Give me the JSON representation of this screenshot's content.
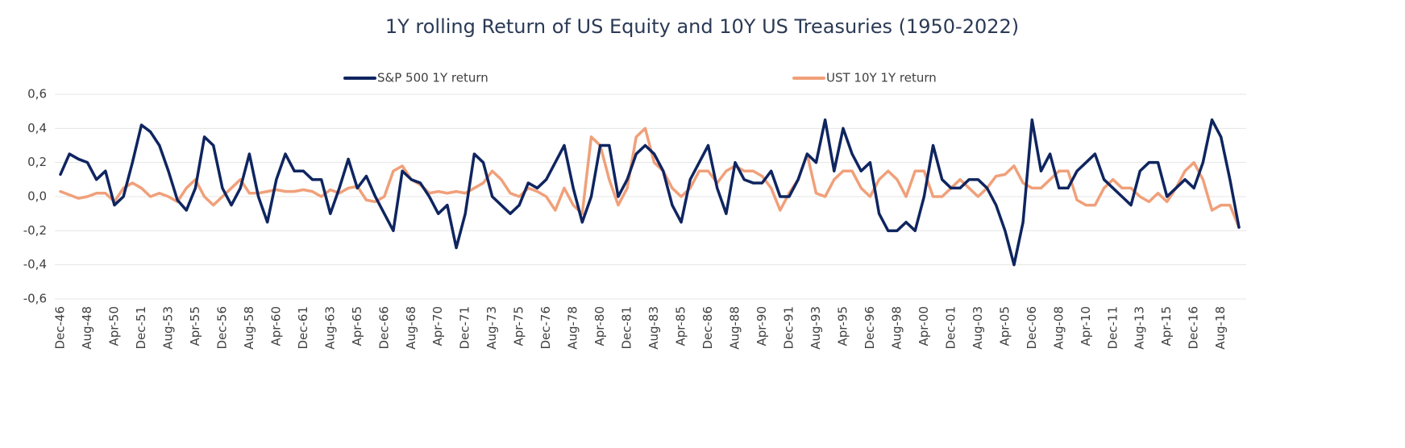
{
  "chart_data": {
    "type": "line",
    "title": "1Y rolling Return of US Equity and 10Y US Treasuries (1950-2022)",
    "legend": "top",
    "grid": true,
    "ylim": [
      -0.6,
      0.6
    ],
    "yticks": [
      {
        "value": 0.6,
        "label": "0,6"
      },
      {
        "value": 0.4,
        "label": "0,4"
      },
      {
        "value": 0.2,
        "label": "0,2"
      },
      {
        "value": 0,
        "label": "0,0"
      },
      {
        "value": -0.2,
        "label": "-0,2"
      },
      {
        "value": -0.4,
        "label": "-0,4"
      },
      {
        "value": -0.6,
        "label": "-0,6"
      }
    ],
    "categories": [
      "Dec-46",
      null,
      null,
      "Aug-48",
      null,
      null,
      "Apr-50",
      null,
      null,
      "Dec-51",
      null,
      null,
      "Aug-53",
      null,
      null,
      "Apr-55",
      null,
      null,
      "Dec-56",
      null,
      null,
      "Aug-58",
      null,
      null,
      "Apr-60",
      null,
      null,
      "Dec-61",
      null,
      null,
      "Aug-63",
      null,
      null,
      "Apr-65",
      null,
      null,
      "Dec-66",
      null,
      null,
      "Aug-68",
      null,
      null,
      "Apr-70",
      null,
      null,
      "Dec-71",
      null,
      null,
      "Aug-73",
      null,
      null,
      "Apr-75",
      null,
      null,
      "Dec-76",
      null,
      null,
      "Aug-78",
      null,
      null,
      "Apr-80",
      null,
      null,
      "Dec-81",
      null,
      null,
      "Aug-83",
      null,
      null,
      "Apr-85",
      null,
      null,
      "Dec-86",
      null,
      null,
      "Aug-88",
      null,
      null,
      "Apr-90",
      null,
      null,
      "Dec-91",
      null,
      null,
      "Aug-93",
      null,
      null,
      "Apr-95",
      null,
      null,
      "Dec-96",
      null,
      null,
      "Aug-98",
      null,
      null,
      "Apr-00",
      null,
      null,
      "Dec-01",
      null,
      null,
      "Aug-03",
      null,
      null,
      "Apr-05",
      null,
      null,
      "Dec-06",
      null,
      null,
      "Aug-08",
      null,
      null,
      "Apr-10",
      null,
      null,
      "Dec-11",
      null,
      null,
      "Aug-13",
      null,
      null,
      "Apr-15",
      null,
      null,
      "Dec-16",
      null,
      null,
      "Aug-18",
      null,
      null
    ],
    "series": [
      {
        "name": "S&P 500 1Y return",
        "color": "#0f2560",
        "values": [
          0.13,
          0.25,
          0.22,
          0.2,
          0.1,
          0.15,
          -0.05,
          0.0,
          0.2,
          0.42,
          0.38,
          0.3,
          0.15,
          -0.02,
          -0.08,
          0.05,
          0.35,
          0.3,
          0.05,
          -0.05,
          0.05,
          0.25,
          0.0,
          -0.15,
          0.1,
          0.25,
          0.15,
          0.15,
          0.1,
          0.1,
          -0.1,
          0.05,
          0.22,
          0.05,
          0.12,
          0.0,
          -0.1,
          -0.2,
          0.15,
          0.1,
          0.08,
          0.0,
          -0.1,
          -0.05,
          -0.3,
          -0.1,
          0.25,
          0.2,
          0.0,
          -0.05,
          -0.1,
          -0.05,
          0.08,
          0.05,
          0.1,
          0.2,
          0.3,
          0.05,
          -0.15,
          0.0,
          0.3,
          0.3,
          0.0,
          0.1,
          0.25,
          0.3,
          0.25,
          0.15,
          -0.05,
          -0.15,
          0.1,
          0.2,
          0.3,
          0.05,
          -0.1,
          0.2,
          0.1,
          0.08,
          0.08,
          0.15,
          0.0,
          0.0,
          0.1,
          0.25,
          0.2,
          0.45,
          0.15,
          0.4,
          0.25,
          0.15,
          0.2,
          -0.1,
          -0.2,
          -0.2,
          -0.15,
          -0.2,
          0.0,
          0.3,
          0.1,
          0.05,
          0.05,
          0.1,
          0.1,
          0.05,
          -0.05,
          -0.2,
          -0.4,
          -0.15,
          0.45,
          0.15,
          0.25,
          0.05,
          0.05,
          0.15,
          0.2,
          0.25,
          0.1,
          0.05,
          0.0,
          -0.05,
          0.15,
          0.2,
          0.2,
          0.0,
          0.05,
          0.1,
          0.05,
          0.2,
          0.45,
          0.35,
          0.1,
          -0.18
        ]
      },
      {
        "name": "UST 10Y 1Y return",
        "color": "#f0a07a",
        "values": [
          0.03,
          0.01,
          -0.01,
          0.0,
          0.02,
          0.02,
          -0.03,
          0.05,
          0.08,
          0.05,
          0.0,
          0.02,
          0.0,
          -0.03,
          0.05,
          0.1,
          0.0,
          -0.05,
          0.0,
          0.05,
          0.1,
          0.02,
          0.02,
          0.03,
          0.04,
          0.03,
          0.03,
          0.04,
          0.03,
          0.0,
          0.04,
          0.02,
          0.05,
          0.06,
          -0.02,
          -0.03,
          0.0,
          0.15,
          0.18,
          0.1,
          0.07,
          0.02,
          0.03,
          0.02,
          0.03,
          0.02,
          0.05,
          0.08,
          0.15,
          0.1,
          0.02,
          0.0,
          0.05,
          0.03,
          0.0,
          -0.08,
          0.05,
          -0.05,
          -0.1,
          0.35,
          0.3,
          0.1,
          -0.05,
          0.05,
          0.35,
          0.4,
          0.2,
          0.15,
          0.05,
          0.0,
          0.05,
          0.15,
          0.15,
          0.08,
          0.15,
          0.18,
          0.15,
          0.15,
          0.12,
          0.05,
          -0.08,
          0.02,
          0.1,
          0.25,
          0.02,
          0.0,
          0.1,
          0.15,
          0.15,
          0.05,
          0.0,
          0.1,
          0.15,
          0.1,
          0.0,
          0.15,
          0.15,
          0.0,
          0.0,
          0.05,
          0.1,
          0.05,
          0.0,
          0.05,
          0.12,
          0.13,
          0.18,
          0.08,
          0.05,
          0.05,
          0.1,
          0.15,
          0.15,
          -0.02,
          -0.05,
          -0.05,
          0.05,
          0.1,
          0.05,
          0.05,
          0.0,
          -0.03,
          0.02,
          -0.03,
          0.05,
          0.15,
          0.2,
          0.1,
          -0.08,
          -0.05,
          -0.05,
          -0.18
        ]
      }
    ]
  }
}
